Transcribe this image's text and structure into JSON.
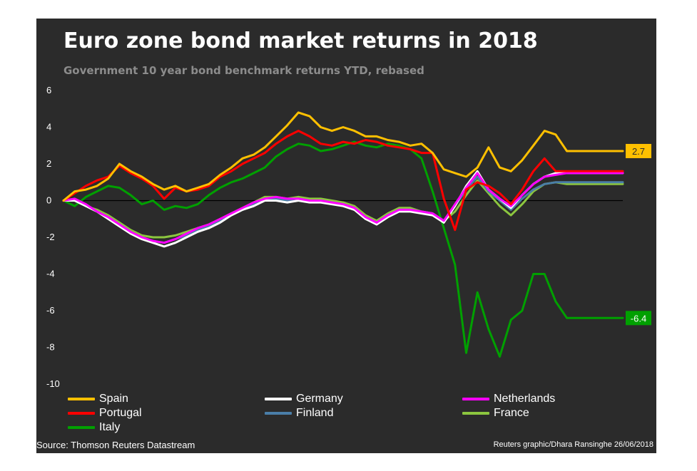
{
  "chart_data": {
    "type": "line",
    "title": "Euro zone bond market returns in 2018",
    "subtitle": "Government 10 year bond benchmark returns YTD, rebased",
    "xlabel": "",
    "ylabel": "",
    "ylim": [
      -10,
      6
    ],
    "yticks": [
      6,
      4,
      2,
      0,
      -2,
      -4,
      -6,
      -8,
      -10
    ],
    "grid": false,
    "zero_line": true,
    "legend_position": "bottom",
    "x": [
      0,
      2,
      4,
      6,
      8,
      10,
      12,
      14,
      16,
      18,
      20,
      22,
      24,
      26,
      28,
      30,
      32,
      34,
      36,
      38,
      40,
      42,
      44,
      46,
      48,
      50,
      52,
      54,
      56,
      58,
      60,
      62,
      64,
      66,
      68,
      70,
      72,
      74,
      76,
      78,
      80,
      82,
      84,
      86,
      88,
      90,
      92,
      94,
      96,
      98,
      100
    ],
    "series": [
      {
        "name": "Spain",
        "color": "#ffc000",
        "end_label": "2.7",
        "values": [
          0,
          0.5,
          0.6,
          0.8,
          1.2,
          2.0,
          1.6,
          1.3,
          0.9,
          0.6,
          0.8,
          0.5,
          0.7,
          0.9,
          1.4,
          1.8,
          2.3,
          2.5,
          2.9,
          3.5,
          4.1,
          4.8,
          4.6,
          4.0,
          3.8,
          4.0,
          3.8,
          3.5,
          3.5,
          3.3,
          3.2,
          3.0,
          3.1,
          2.6,
          1.7,
          1.5,
          1.3,
          1.8,
          2.9,
          1.8,
          1.6,
          2.2,
          3.0,
          3.8,
          3.6,
          2.7,
          2.7,
          2.7,
          2.7,
          2.7,
          2.7
        ]
      },
      {
        "name": "Portugal",
        "color": "#ff0000",
        "values": [
          0,
          0.4,
          0.8,
          1.1,
          1.3,
          1.9,
          1.5,
          1.2,
          0.8,
          0.1,
          0.7,
          0.5,
          0.6,
          0.8,
          1.3,
          1.6,
          2.0,
          2.3,
          2.6,
          3.1,
          3.5,
          3.8,
          3.5,
          3.1,
          3.0,
          3.2,
          3.1,
          3.3,
          3.2,
          3.0,
          2.9,
          2.8,
          2.6,
          2.6,
          0.1,
          -1.6,
          0.6,
          1.0,
          0.8,
          0.4,
          -0.2,
          0.6,
          1.6,
          2.3,
          1.6,
          1.6,
          1.6,
          1.6,
          1.6,
          1.6,
          1.6
        ]
      },
      {
        "name": "Italy",
        "color": "#00a000",
        "end_label": "-6.4",
        "values": [
          0,
          -0.3,
          0.2,
          0.5,
          0.8,
          0.7,
          0.3,
          -0.2,
          0,
          -0.5,
          -0.3,
          -0.4,
          -0.2,
          0.3,
          0.7,
          1.0,
          1.2,
          1.5,
          1.8,
          2.4,
          2.8,
          3.1,
          3.0,
          2.7,
          2.8,
          3.0,
          3.2,
          3.0,
          2.9,
          3.1,
          3.0,
          2.8,
          2.3,
          0.5,
          -1.5,
          -3.5,
          -8.3,
          -5.0,
          -7.0,
          -8.5,
          -6.5,
          -6.0,
          -4.0,
          -4.0,
          -5.5,
          -6.4,
          -6.4,
          -6.4,
          -6.4,
          -6.4,
          -6.4
        ]
      },
      {
        "name": "Germany",
        "color": "#ffffff",
        "values": [
          0,
          0,
          -0.3,
          -0.6,
          -1.0,
          -1.4,
          -1.8,
          -2.1,
          -2.3,
          -2.5,
          -2.3,
          -2.0,
          -1.7,
          -1.5,
          -1.2,
          -0.8,
          -0.5,
          -0.3,
          0,
          0,
          -0.1,
          0,
          -0.1,
          -0.1,
          -0.2,
          -0.3,
          -0.5,
          -1.0,
          -1.3,
          -0.9,
          -0.6,
          -0.6,
          -0.7,
          -0.8,
          -1.2,
          -0.3,
          0.8,
          1.6,
          0.6,
          0.1,
          -0.4,
          0.3,
          0.9,
          1.3,
          1.5,
          1.5,
          1.5,
          1.5,
          1.5,
          1.5,
          1.5
        ]
      },
      {
        "name": "Finland",
        "color": "#4a7ea8",
        "values": [
          0,
          0,
          -0.3,
          -0.6,
          -0.9,
          -1.3,
          -1.7,
          -2.0,
          -2.2,
          -2.3,
          -2.1,
          -1.9,
          -1.6,
          -1.4,
          -1.1,
          -0.8,
          -0.5,
          -0.2,
          0.1,
          0.1,
          0,
          0.1,
          0,
          0,
          -0.1,
          -0.2,
          -0.4,
          -0.9,
          -1.2,
          -0.8,
          -0.5,
          -0.5,
          -0.6,
          -0.7,
          -1.1,
          -0.3,
          0.6,
          1.3,
          0.5,
          0,
          -0.5,
          0.1,
          0.6,
          0.9,
          1.0,
          1.0,
          1.0,
          1.0,
          1.0,
          1.0,
          1.0
        ]
      },
      {
        "name": "France",
        "color": "#8cc63f",
        "values": [
          0,
          0,
          -0.3,
          -0.5,
          -0.8,
          -1.2,
          -1.6,
          -1.9,
          -2.0,
          -2.0,
          -1.9,
          -1.7,
          -1.5,
          -1.3,
          -1.0,
          -0.7,
          -0.4,
          -0.1,
          0.2,
          0.2,
          0.1,
          0.2,
          0.1,
          0.1,
          0,
          -0.1,
          -0.3,
          -0.8,
          -1.1,
          -0.7,
          -0.4,
          -0.4,
          -0.6,
          -0.7,
          -1.1,
          -0.6,
          0.3,
          1.1,
          0.4,
          -0.3,
          -0.8,
          -0.2,
          0.5,
          0.9,
          1.0,
          0.9,
          0.9,
          0.9,
          0.9,
          0.9,
          0.9
        ]
      },
      {
        "name": "Netherlands",
        "color": "#ff00ff",
        "values": [
          0,
          0.1,
          -0.2,
          -0.6,
          -0.9,
          -1.3,
          -1.7,
          -2.0,
          -2.2,
          -2.3,
          -2.1,
          -1.8,
          -1.5,
          -1.3,
          -1.0,
          -0.7,
          -0.4,
          -0.1,
          0.1,
          0.2,
          0.1,
          0.1,
          0,
          0,
          -0.1,
          -0.2,
          -0.4,
          -0.9,
          -1.2,
          -0.8,
          -0.5,
          -0.5,
          -0.6,
          -0.7,
          -1.1,
          -0.2,
          0.7,
          1.5,
          0.6,
          0.1,
          -0.3,
          0.3,
          0.9,
          1.3,
          1.4,
          1.5,
          1.5,
          1.5,
          1.5,
          1.5,
          1.5
        ]
      }
    ],
    "legend": {
      "col1": [
        "Spain",
        "Portugal",
        "Italy"
      ],
      "col2": [
        "Germany",
        "Finland"
      ],
      "col3": [
        "Netherlands",
        "France"
      ]
    },
    "source": "Source: Thomson Reuters Datastream",
    "credit": "Reuters graphic/Dhara Ransinghe 26/06/2018"
  }
}
